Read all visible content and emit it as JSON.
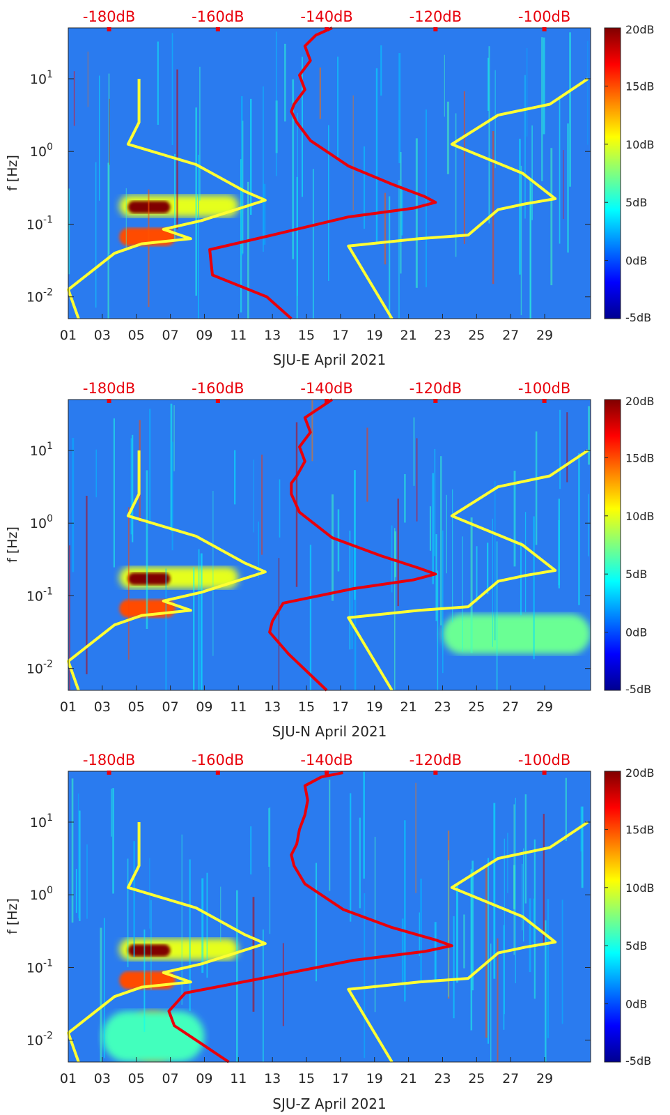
{
  "chart_data": [
    {
      "type": "heatmap",
      "station": "SJU-E",
      "xlabel": "SJU-E April 2021",
      "ylabel": "f [Hz]",
      "x_ticks": [
        "01",
        "03",
        "05",
        "07",
        "09",
        "11",
        "13",
        "15",
        "17",
        "19",
        "21",
        "23",
        "25",
        "27",
        "29"
      ],
      "x_range_days": [
        1,
        31.7
      ],
      "y_ticks": [
        {
          "base": "10",
          "exp": "-2"
        },
        {
          "base": "10",
          "exp": "-1"
        },
        {
          "base": "10",
          "exp": "0"
        },
        {
          "base": "10",
          "exp": "1"
        }
      ],
      "y_range_log10": [
        -2.3,
        1.7
      ],
      "top_axis_ticks": [
        "-180dB",
        "-160dB",
        "-140dB",
        "-120dB",
        "-100dB"
      ],
      "top_axis_range_db": [
        -187.5,
        -91.5
      ],
      "colorbar": {
        "ticks": [
          "20dB",
          "15dB",
          "10dB",
          "5dB",
          "0dB",
          "-5dB"
        ],
        "range_db": [
          -5,
          20
        ],
        "colormap": "jet"
      },
      "low_noise_model": [
        [
          -185.6,
          -2.3
        ],
        [
          -187.5,
          -1.9
        ],
        [
          -179,
          -1.4
        ],
        [
          -174,
          -1.27
        ],
        [
          -165,
          -1.2
        ],
        [
          -170,
          -1.07
        ],
        [
          -163,
          -0.95
        ],
        [
          -151.3,
          -0.67
        ],
        [
          -155,
          -0.55
        ],
        [
          -164,
          -0.18
        ],
        [
          -176.5,
          0.1
        ],
        [
          -174.5,
          0.4
        ],
        [
          -174.5,
          1.0
        ]
      ],
      "high_noise_model": [
        [
          -128,
          -2.3
        ],
        [
          -136,
          -1.3
        ],
        [
          -123,
          -1.2
        ],
        [
          -114,
          -1.15
        ],
        [
          -108.5,
          -0.8
        ],
        [
          -103.5,
          -0.72
        ],
        [
          -98,
          -0.65
        ],
        [
          -104,
          -0.3
        ],
        [
          -117,
          0.1
        ],
        [
          -108.5,
          0.5
        ],
        [
          -99,
          0.65
        ],
        [
          -92,
          1.0
        ]
      ],
      "median_psd_db": [
        [
          -146.5,
          -2.3
        ],
        [
          -151,
          -2.0
        ],
        [
          -161,
          -1.7
        ],
        [
          -161.5,
          -1.35
        ],
        [
          -150,
          -1.15
        ],
        [
          -136,
          -0.9
        ],
        [
          -124,
          -0.78
        ],
        [
          -120,
          -0.7
        ],
        [
          -122,
          -0.62
        ],
        [
          -128,
          -0.45
        ],
        [
          -136,
          -0.2
        ],
        [
          -143,
          0.15
        ],
        [
          -145.5,
          0.4
        ],
        [
          -146.5,
          0.55
        ],
        [
          -146,
          0.65
        ],
        [
          -144,
          0.85
        ],
        [
          -145,
          1.05
        ],
        [
          -143,
          1.25
        ],
        [
          -144,
          1.45
        ],
        [
          -142,
          1.6
        ],
        [
          -139,
          1.7
        ]
      ],
      "hot_regions": [
        {
          "day_range": [
            4,
            11
          ],
          "log10f_range": [
            -0.9,
            -0.6
          ],
          "level_db": 10
        },
        {
          "day_range": [
            4.5,
            7
          ],
          "log10f_range": [
            -0.85,
            -0.68
          ],
          "level_db": 20
        },
        {
          "day_range": [
            4,
            7.3
          ],
          "log10f_range": [
            -1.3,
            -1.05
          ],
          "level_db": 15
        }
      ]
    },
    {
      "type": "heatmap",
      "station": "SJU-N",
      "xlabel": "SJU-N April 2021",
      "ylabel": "f [Hz]",
      "x_ticks": [
        "01",
        "03",
        "05",
        "07",
        "09",
        "11",
        "13",
        "15",
        "17",
        "19",
        "21",
        "23",
        "25",
        "27",
        "29"
      ],
      "x_range_days": [
        1,
        31.7
      ],
      "y_ticks": [
        {
          "base": "10",
          "exp": "-2"
        },
        {
          "base": "10",
          "exp": "-1"
        },
        {
          "base": "10",
          "exp": "0"
        },
        {
          "base": "10",
          "exp": "1"
        }
      ],
      "y_range_log10": [
        -2.3,
        1.7
      ],
      "top_axis_ticks": [
        "-180dB",
        "-160dB",
        "-140dB",
        "-120dB",
        "-100dB"
      ],
      "top_axis_range_db": [
        -187.5,
        -91.5
      ],
      "colorbar": {
        "ticks": [
          "20dB",
          "15dB",
          "10dB",
          "5dB",
          "0dB",
          "-5dB"
        ],
        "range_db": [
          -5,
          20
        ],
        "colormap": "jet"
      },
      "low_noise_model": [
        [
          -185.6,
          -2.3
        ],
        [
          -187.5,
          -1.9
        ],
        [
          -179,
          -1.4
        ],
        [
          -174,
          -1.27
        ],
        [
          -165,
          -1.2
        ],
        [
          -170,
          -1.07
        ],
        [
          -163,
          -0.95
        ],
        [
          -151.3,
          -0.67
        ],
        [
          -155,
          -0.55
        ],
        [
          -164,
          -0.18
        ],
        [
          -176.5,
          0.1
        ],
        [
          -174.5,
          0.4
        ],
        [
          -174.5,
          1.0
        ]
      ],
      "high_noise_model": [
        [
          -128,
          -2.3
        ],
        [
          -136,
          -1.3
        ],
        [
          -123,
          -1.2
        ],
        [
          -114,
          -1.15
        ],
        [
          -108.5,
          -0.8
        ],
        [
          -103.5,
          -0.72
        ],
        [
          -98,
          -0.65
        ],
        [
          -104,
          -0.3
        ],
        [
          -117,
          0.1
        ],
        [
          -108.5,
          0.5
        ],
        [
          -99,
          0.65
        ],
        [
          -92,
          1.0
        ]
      ],
      "median_psd_db": [
        [
          -140,
          -2.3
        ],
        [
          -147,
          -1.8
        ],
        [
          -150.5,
          -1.5
        ],
        [
          -150,
          -1.35
        ],
        [
          -148,
          -1.1
        ],
        [
          -135,
          -0.9
        ],
        [
          -124,
          -0.78
        ],
        [
          -120,
          -0.7
        ],
        [
          -123,
          -0.62
        ],
        [
          -130,
          -0.45
        ],
        [
          -139,
          -0.2
        ],
        [
          -145,
          0.15
        ],
        [
          -146.5,
          0.4
        ],
        [
          -146.5,
          0.55
        ],
        [
          -145.5,
          0.65
        ],
        [
          -144,
          0.85
        ],
        [
          -145,
          1.05
        ],
        [
          -143,
          1.25
        ],
        [
          -144,
          1.45
        ],
        [
          -141,
          1.6
        ],
        [
          -139,
          1.7
        ]
      ],
      "hot_regions": [
        {
          "day_range": [
            4,
            11
          ],
          "log10f_range": [
            -0.9,
            -0.6
          ],
          "level_db": 10
        },
        {
          "day_range": [
            4.5,
            7
          ],
          "log10f_range": [
            -0.85,
            -0.68
          ],
          "level_db": 20
        },
        {
          "day_range": [
            4,
            7.3
          ],
          "log10f_range": [
            -1.3,
            -1.05
          ],
          "level_db": 15
        },
        {
          "day_range": [
            23,
            31.7
          ],
          "log10f_range": [
            -1.8,
            -1.25
          ],
          "level_db": 7
        }
      ]
    },
    {
      "type": "heatmap",
      "station": "SJU-Z",
      "xlabel": "SJU-Z April 2021",
      "ylabel": "f [Hz]",
      "x_ticks": [
        "01",
        "03",
        "05",
        "07",
        "09",
        "11",
        "13",
        "15",
        "17",
        "19",
        "21",
        "23",
        "25",
        "27",
        "29"
      ],
      "x_range_days": [
        1,
        31.7
      ],
      "y_ticks": [
        {
          "base": "10",
          "exp": "-2"
        },
        {
          "base": "10",
          "exp": "-1"
        },
        {
          "base": "10",
          "exp": "0"
        },
        {
          "base": "10",
          "exp": "1"
        }
      ],
      "y_range_log10": [
        -2.3,
        1.7
      ],
      "top_axis_ticks": [
        "-180dB",
        "-160dB",
        "-140dB",
        "-120dB",
        "-100dB"
      ],
      "top_axis_range_db": [
        -187.5,
        -91.5
      ],
      "colorbar": {
        "ticks": [
          "20dB",
          "15dB",
          "10dB",
          "5dB",
          "0dB",
          "-5dB"
        ],
        "range_db": [
          -5,
          20
        ],
        "colormap": "jet"
      },
      "low_noise_model": [
        [
          -185.6,
          -2.3
        ],
        [
          -187.5,
          -1.9
        ],
        [
          -179,
          -1.4
        ],
        [
          -174,
          -1.27
        ],
        [
          -165,
          -1.2
        ],
        [
          -170,
          -1.07
        ],
        [
          -163,
          -0.95
        ],
        [
          -151.3,
          -0.67
        ],
        [
          -155,
          -0.55
        ],
        [
          -164,
          -0.18
        ],
        [
          -176.5,
          0.1
        ],
        [
          -174.5,
          0.4
        ],
        [
          -174.5,
          1.0
        ]
      ],
      "high_noise_model": [
        [
          -128,
          -2.3
        ],
        [
          -136,
          -1.3
        ],
        [
          -123,
          -1.2
        ],
        [
          -114,
          -1.15
        ],
        [
          -108.5,
          -0.8
        ],
        [
          -103.5,
          -0.72
        ],
        [
          -98,
          -0.65
        ],
        [
          -104,
          -0.3
        ],
        [
          -117,
          0.1
        ],
        [
          -108.5,
          0.5
        ],
        [
          -99,
          0.65
        ],
        [
          -92,
          1.0
        ]
      ],
      "median_psd_db": [
        [
          -158,
          -2.3
        ],
        [
          -164,
          -2.0
        ],
        [
          -168,
          -1.8
        ],
        [
          -169,
          -1.6
        ],
        [
          -166,
          -1.35
        ],
        [
          -152,
          -1.15
        ],
        [
          -135,
          -0.9
        ],
        [
          -122,
          -0.78
        ],
        [
          -117,
          -0.7
        ],
        [
          -120,
          -0.62
        ],
        [
          -128,
          -0.45
        ],
        [
          -137,
          -0.2
        ],
        [
          -144,
          0.15
        ],
        [
          -146,
          0.4
        ],
        [
          -146.5,
          0.55
        ],
        [
          -145.5,
          0.7
        ],
        [
          -145,
          0.9
        ],
        [
          -144,
          1.1
        ],
        [
          -143.5,
          1.3
        ],
        [
          -144,
          1.5
        ],
        [
          -141,
          1.62
        ],
        [
          -137,
          1.68
        ]
      ],
      "hot_regions": [
        {
          "day_range": [
            4,
            11
          ],
          "log10f_range": [
            -0.9,
            -0.6
          ],
          "level_db": 10
        },
        {
          "day_range": [
            4.5,
            7
          ],
          "log10f_range": [
            -0.85,
            -0.68
          ],
          "level_db": 20
        },
        {
          "day_range": [
            4,
            7.3
          ],
          "log10f_range": [
            -1.3,
            -1.05
          ],
          "level_db": 15
        },
        {
          "day_range": [
            4.5,
            7.5
          ],
          "log10f_range": [
            -2.3,
            -1.6
          ],
          "level_db": 14
        },
        {
          "day_range": [
            3,
            9
          ],
          "log10f_range": [
            -2.3,
            -1.6
          ],
          "level_db": 6
        }
      ]
    }
  ]
}
